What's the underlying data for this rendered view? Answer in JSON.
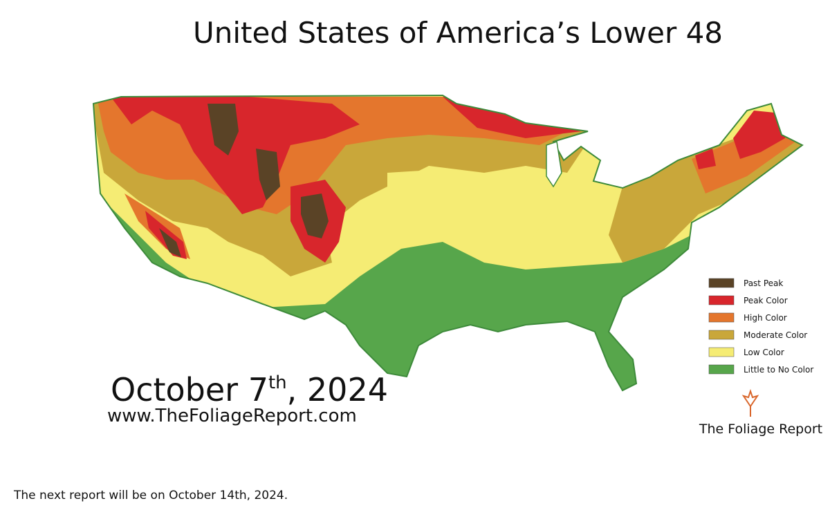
{
  "title": "United States of America’s Lower 48",
  "date": {
    "main": "October 7",
    "suffix": "th",
    "year": ", 2024"
  },
  "website": "www.TheFoliageReport.com",
  "legend": {
    "items": [
      {
        "name": "Past Peak",
        "color": "#5a4326"
      },
      {
        "name": "Peak Color",
        "color": "#d8262c"
      },
      {
        "name": "High Color",
        "color": "#e4762d"
      },
      {
        "name": "Moderate Color",
        "color": "#c9a73a"
      },
      {
        "name": "Low Color",
        "color": "#f5ec74"
      },
      {
        "name": "Little to No Color",
        "color": "#57a64b"
      }
    ]
  },
  "logo": "The Foliage Report",
  "footer": "The next report will be on October 14th, 2024."
}
